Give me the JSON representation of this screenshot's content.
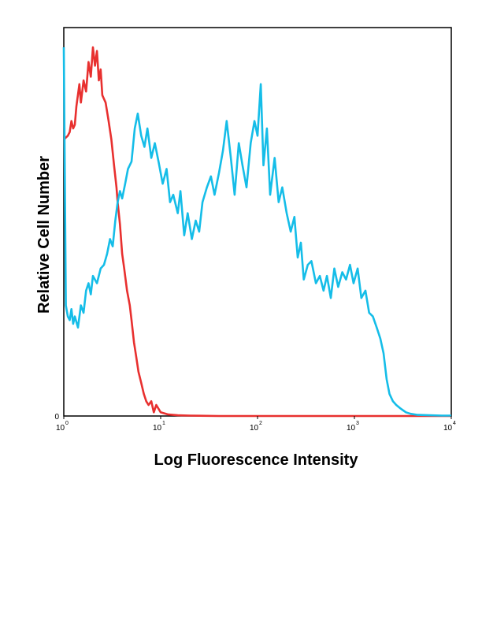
{
  "chart_data": {
    "type": "line",
    "title": "",
    "xlabel": "Log Fluorescence Intensity",
    "ylabel": "Relative Cell Number",
    "x_scale": "log",
    "xlim": [
      1,
      10000
    ],
    "ylim": [
      0,
      100
    ],
    "x_ticks": [
      {
        "base": "10",
        "exp": "0",
        "value": 1
      },
      {
        "base": "10",
        "exp": "1",
        "value": 10
      },
      {
        "base": "10",
        "exp": "2",
        "value": 100
      },
      {
        "base": "10",
        "exp": "3",
        "value": 1000
      },
      {
        "base": "10",
        "exp": "4",
        "value": 10000
      }
    ],
    "y_ticks": [
      {
        "label": "0",
        "value": 0
      }
    ],
    "grid": false,
    "legend": "none",
    "series": [
      {
        "color": "#e8302f",
        "points": [
          [
            1.0,
            75
          ],
          [
            1.1,
            76
          ],
          [
            1.15,
            77
          ],
          [
            1.2,
            80
          ],
          [
            1.25,
            78
          ],
          [
            1.3,
            79
          ],
          [
            1.35,
            84
          ],
          [
            1.45,
            90
          ],
          [
            1.5,
            85
          ],
          [
            1.6,
            91
          ],
          [
            1.7,
            88
          ],
          [
            1.8,
            96
          ],
          [
            1.9,
            92
          ],
          [
            2.0,
            100
          ],
          [
            2.1,
            95
          ],
          [
            2.2,
            99
          ],
          [
            2.3,
            91
          ],
          [
            2.4,
            94
          ],
          [
            2.5,
            87
          ],
          [
            2.7,
            85
          ],
          [
            2.9,
            80
          ],
          [
            3.1,
            75
          ],
          [
            3.3,
            68
          ],
          [
            3.5,
            62
          ],
          [
            3.6,
            58
          ],
          [
            3.8,
            52
          ],
          [
            4.0,
            44
          ],
          [
            4.2,
            40
          ],
          [
            4.5,
            34
          ],
          [
            4.8,
            30
          ],
          [
            5.0,
            26
          ],
          [
            5.3,
            20
          ],
          [
            5.6,
            16
          ],
          [
            5.9,
            12
          ],
          [
            6.3,
            9
          ],
          [
            6.7,
            6
          ],
          [
            7.1,
            4
          ],
          [
            7.5,
            3
          ],
          [
            8.0,
            4
          ],
          [
            8.5,
            1
          ],
          [
            9.0,
            3
          ],
          [
            10,
            1
          ],
          [
            12,
            0.4
          ],
          [
            15,
            0.2
          ],
          [
            20,
            0.1
          ],
          [
            40,
            0
          ],
          [
            100,
            0
          ],
          [
            1000,
            0
          ],
          [
            10000,
            0
          ]
        ]
      },
      {
        "color": "#15bde8",
        "points": [
          [
            1.0,
            100
          ],
          [
            1.05,
            30
          ],
          [
            1.1,
            27
          ],
          [
            1.15,
            26
          ],
          [
            1.2,
            29
          ],
          [
            1.25,
            25
          ],
          [
            1.3,
            27
          ],
          [
            1.4,
            24
          ],
          [
            1.5,
            30
          ],
          [
            1.6,
            28
          ],
          [
            1.7,
            34
          ],
          [
            1.8,
            36
          ],
          [
            1.9,
            33
          ],
          [
            2.0,
            38
          ],
          [
            2.2,
            36
          ],
          [
            2.4,
            40
          ],
          [
            2.6,
            41
          ],
          [
            2.8,
            44
          ],
          [
            3.0,
            48
          ],
          [
            3.2,
            46
          ],
          [
            3.4,
            53
          ],
          [
            3.6,
            58
          ],
          [
            3.8,
            61
          ],
          [
            4.0,
            59
          ],
          [
            4.3,
            63
          ],
          [
            4.6,
            67
          ],
          [
            5.0,
            69
          ],
          [
            5.4,
            78
          ],
          [
            5.8,
            82
          ],
          [
            6.3,
            76
          ],
          [
            6.8,
            73
          ],
          [
            7.3,
            78
          ],
          [
            8.0,
            70
          ],
          [
            8.7,
            74
          ],
          [
            9.5,
            69
          ],
          [
            10.5,
            63
          ],
          [
            11.5,
            67
          ],
          [
            12.5,
            58
          ],
          [
            13.5,
            60
          ],
          [
            15,
            55
          ],
          [
            16,
            61
          ],
          [
            17.5,
            49
          ],
          [
            19,
            55
          ],
          [
            21,
            48
          ],
          [
            23,
            53
          ],
          [
            25,
            50
          ],
          [
            27,
            58
          ],
          [
            30,
            62
          ],
          [
            33,
            65
          ],
          [
            36,
            60
          ],
          [
            40,
            66
          ],
          [
            44,
            72
          ],
          [
            48,
            80
          ],
          [
            53,
            70
          ],
          [
            58,
            60
          ],
          [
            64,
            74
          ],
          [
            70,
            68
          ],
          [
            77,
            62
          ],
          [
            85,
            74
          ],
          [
            93,
            80
          ],
          [
            100,
            76
          ],
          [
            108,
            90
          ],
          [
            115,
            68
          ],
          [
            125,
            78
          ],
          [
            135,
            60
          ],
          [
            150,
            70
          ],
          [
            165,
            58
          ],
          [
            180,
            62
          ],
          [
            200,
            55
          ],
          [
            220,
            50
          ],
          [
            240,
            54
          ],
          [
            260,
            43
          ],
          [
            280,
            47
          ],
          [
            300,
            37
          ],
          [
            330,
            41
          ],
          [
            360,
            42
          ],
          [
            400,
            36
          ],
          [
            440,
            38
          ],
          [
            480,
            34
          ],
          [
            520,
            38
          ],
          [
            570,
            32
          ],
          [
            620,
            40
          ],
          [
            680,
            35
          ],
          [
            750,
            39
          ],
          [
            820,
            37
          ],
          [
            900,
            41
          ],
          [
            980,
            36
          ],
          [
            1080,
            40
          ],
          [
            1180,
            32
          ],
          [
            1300,
            34
          ],
          [
            1420,
            28
          ],
          [
            1550,
            27
          ],
          [
            1700,
            24
          ],
          [
            1850,
            21
          ],
          [
            2000,
            17
          ],
          [
            2150,
            10
          ],
          [
            2300,
            6
          ],
          [
            2500,
            4
          ],
          [
            2700,
            3
          ],
          [
            3000,
            2
          ],
          [
            3400,
            1
          ],
          [
            3800,
            0.6
          ],
          [
            4500,
            0.3
          ],
          [
            6000,
            0.2
          ],
          [
            8000,
            0.1
          ],
          [
            10000,
            0.1
          ]
        ]
      }
    ]
  }
}
